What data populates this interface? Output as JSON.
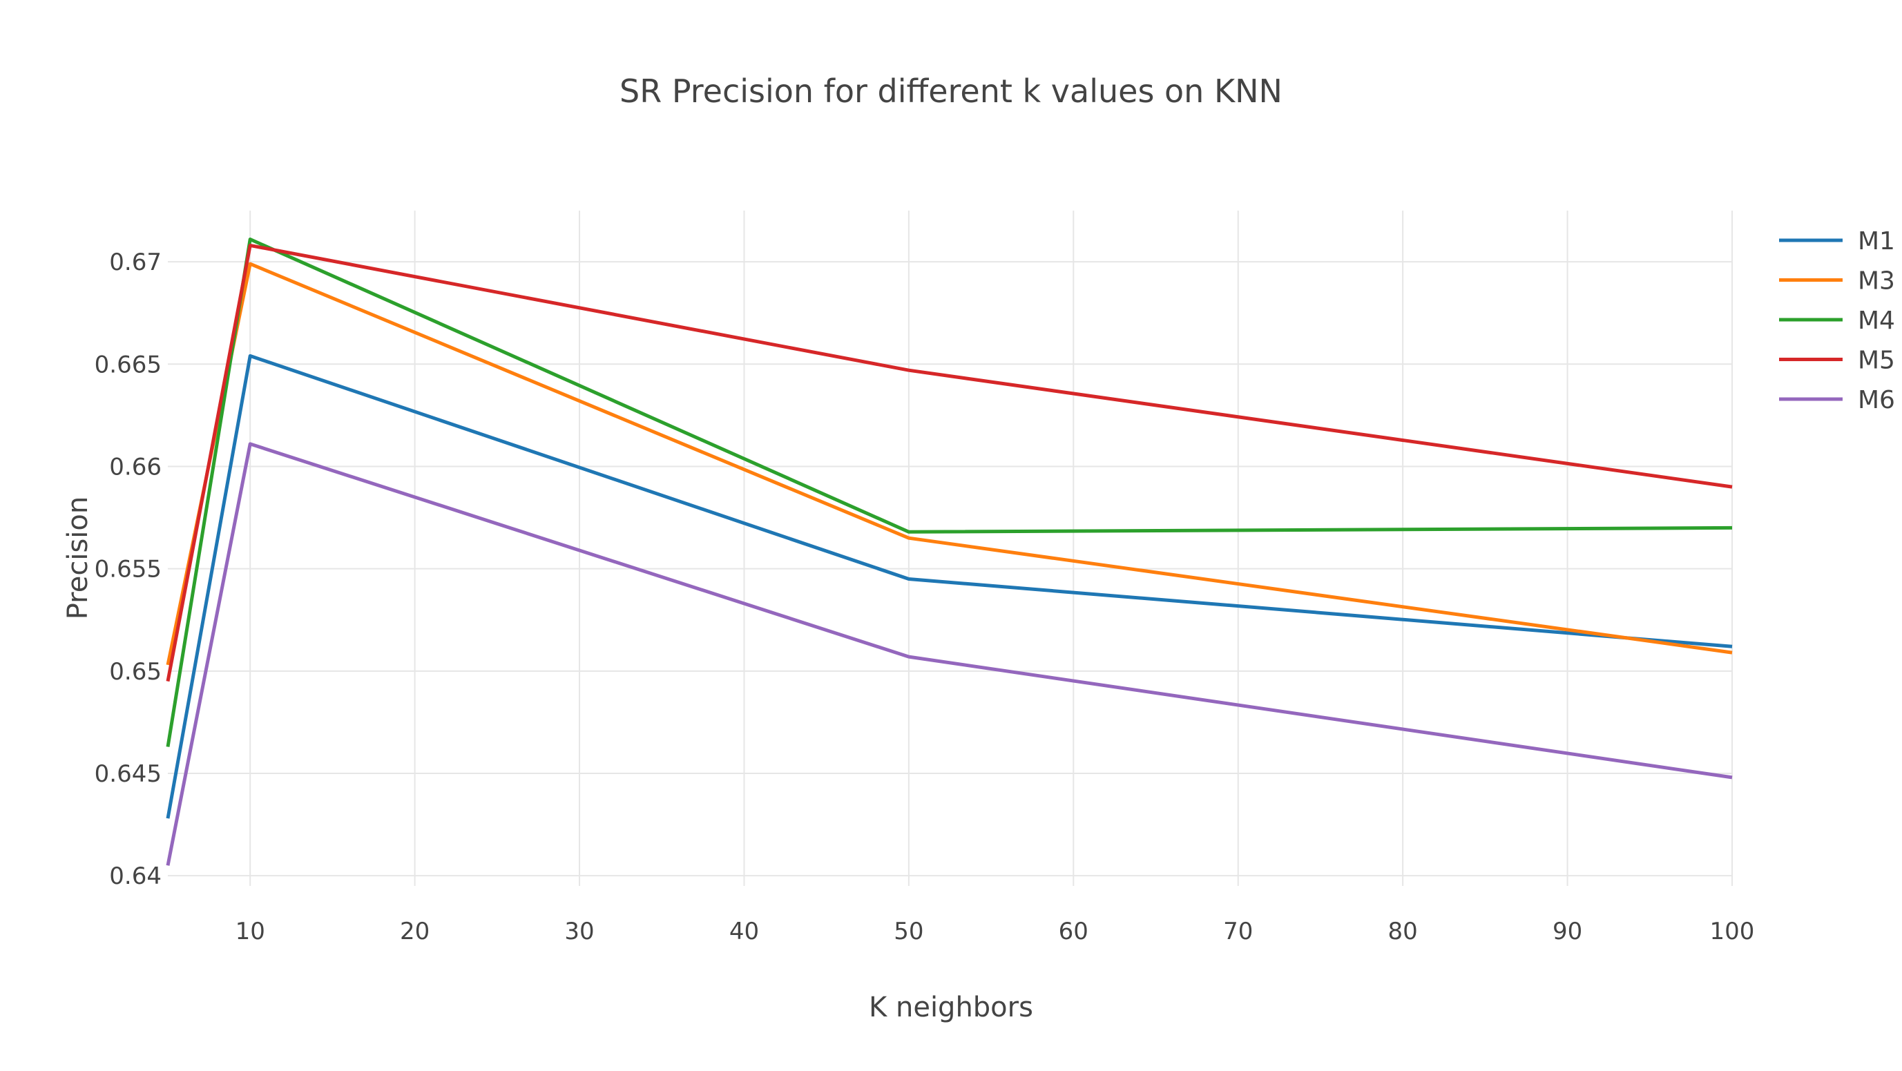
{
  "chart_data": {
    "type": "line",
    "title": "SR Precision for different k values on KNN",
    "xlabel": "K neighbors",
    "ylabel": "Precision",
    "x": [
      5,
      10,
      50,
      100
    ],
    "xlim": [
      5,
      100
    ],
    "ylim": [
      0.6395,
      0.6725
    ],
    "xticks": [
      10,
      20,
      30,
      40,
      50,
      60,
      70,
      80,
      90,
      100
    ],
    "xtick_labels": [
      "10",
      "20",
      "30",
      "40",
      "50",
      "60",
      "70",
      "80",
      "90",
      "100"
    ],
    "yticks": [
      0.64,
      0.645,
      0.65,
      0.655,
      0.66,
      0.665,
      0.67
    ],
    "ytick_labels": [
      "0.64",
      "0.645",
      "0.65",
      "0.655",
      "0.66",
      "0.665",
      "0.67"
    ],
    "grid": true,
    "legend_position": "top-right",
    "series": [
      {
        "name": "M1",
        "color": "#1f77b4",
        "values": [
          0.6428,
          0.6654,
          0.6545,
          0.6512
        ]
      },
      {
        "name": "M3",
        "color": "#ff7f0e",
        "values": [
          0.6503,
          0.6699,
          0.6565,
          0.6509
        ]
      },
      {
        "name": "M4",
        "color": "#2ca02c",
        "values": [
          0.6463,
          0.6711,
          0.6568,
          0.657
        ]
      },
      {
        "name": "M5",
        "color": "#d62728",
        "values": [
          0.6495,
          0.6708,
          0.6647,
          0.659
        ]
      },
      {
        "name": "M6",
        "color": "#9467bd",
        "values": [
          0.6405,
          0.6611,
          0.6507,
          0.6448
        ]
      }
    ]
  }
}
